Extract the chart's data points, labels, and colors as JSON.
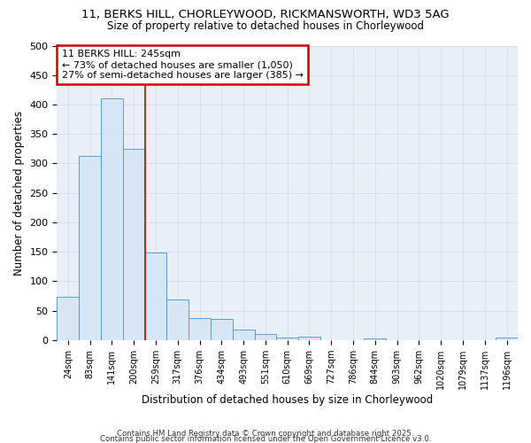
{
  "title_line1": "11, BERKS HILL, CHORLEYWOOD, RICKMANSWORTH, WD3 5AG",
  "title_line2": "Size of property relative to detached houses in Chorleywood",
  "xlabel": "Distribution of detached houses by size in Chorleywood",
  "ylabel": "Number of detached properties",
  "categories": [
    "24sqm",
    "83sqm",
    "141sqm",
    "200sqm",
    "259sqm",
    "317sqm",
    "376sqm",
    "434sqm",
    "493sqm",
    "551sqm",
    "610sqm",
    "669sqm",
    "727sqm",
    "786sqm",
    "844sqm",
    "903sqm",
    "962sqm",
    "1020sqm",
    "1079sqm",
    "1137sqm",
    "1196sqm"
  ],
  "values": [
    73,
    313,
    410,
    325,
    148,
    69,
    37,
    36,
    18,
    10,
    5,
    6,
    0,
    0,
    3,
    0,
    0,
    0,
    0,
    0,
    5
  ],
  "bar_color": "#d6e6f5",
  "bar_edge_color": "#5b9bd5",
  "vline_color": "#cc0000",
  "annotation_title": "11 BERKS HILL: 245sqm",
  "annotation_line2": "← 73% of detached houses are smaller (1,050)",
  "annotation_line3": "27% of semi-detached houses are larger (385) →",
  "annotation_box_color": "#cc0000",
  "annotation_bg": "white",
  "ylim": [
    0,
    500
  ],
  "yticks": [
    0,
    50,
    100,
    150,
    200,
    250,
    300,
    350,
    400,
    450,
    500
  ],
  "grid_color": "#d0dce8",
  "bg_color": "#e8eff7",
  "footer_line1": "Contains HM Land Registry data © Crown copyright and database right 2025.",
  "footer_line2": "Contains public sector information licensed under the Open Government Licence v3.0."
}
